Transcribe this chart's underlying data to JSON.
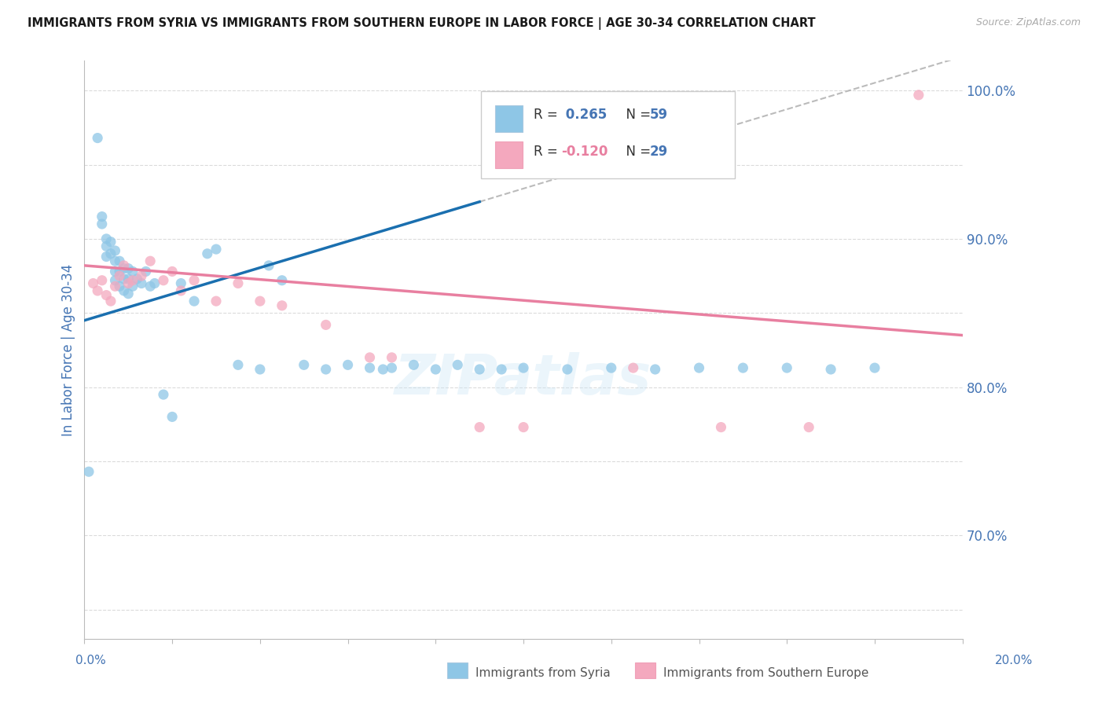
{
  "title": "IMMIGRANTS FROM SYRIA VS IMMIGRANTS FROM SOUTHERN EUROPE IN LABOR FORCE | AGE 30-34 CORRELATION CHART",
  "source": "Source: ZipAtlas.com",
  "ylabel": "In Labor Force | Age 30-34",
  "xlim": [
    0.0,
    0.2
  ],
  "ylim": [
    0.63,
    1.02
  ],
  "color_syria": "#8ec6e6",
  "color_southern": "#f4a8be",
  "color_axis_label": "#4575b4",
  "color_source": "#aaaaaa",
  "color_grid": "#cccccc",
  "color_line_syria": "#1a6faf",
  "color_line_southern": "#e87fa0",
  "color_line_dashed": "#aaaaaa",
  "syria_x": [
    0.001,
    0.003,
    0.004,
    0.004,
    0.005,
    0.005,
    0.005,
    0.006,
    0.006,
    0.007,
    0.007,
    0.007,
    0.007,
    0.008,
    0.008,
    0.008,
    0.009,
    0.009,
    0.009,
    0.01,
    0.01,
    0.01,
    0.011,
    0.011,
    0.012,
    0.013,
    0.014,
    0.015,
    0.016,
    0.018,
    0.02,
    0.022,
    0.025,
    0.028,
    0.03,
    0.035,
    0.04,
    0.042,
    0.045,
    0.05,
    0.055,
    0.06,
    0.065,
    0.068,
    0.07,
    0.075,
    0.08,
    0.085,
    0.09,
    0.095,
    0.1,
    0.11,
    0.12,
    0.13,
    0.14,
    0.15,
    0.16,
    0.17,
    0.18
  ],
  "syria_y": [
    0.743,
    0.968,
    0.915,
    0.91,
    0.9,
    0.895,
    0.888,
    0.898,
    0.89,
    0.892,
    0.885,
    0.878,
    0.872,
    0.885,
    0.878,
    0.868,
    0.88,
    0.873,
    0.865,
    0.88,
    0.873,
    0.863,
    0.878,
    0.868,
    0.873,
    0.87,
    0.878,
    0.868,
    0.87,
    0.795,
    0.78,
    0.87,
    0.858,
    0.89,
    0.893,
    0.815,
    0.812,
    0.882,
    0.872,
    0.815,
    0.812,
    0.815,
    0.813,
    0.812,
    0.813,
    0.815,
    0.812,
    0.815,
    0.812,
    0.812,
    0.813,
    0.812,
    0.813,
    0.812,
    0.813,
    0.813,
    0.813,
    0.812,
    0.813
  ],
  "southern_x": [
    0.002,
    0.003,
    0.004,
    0.005,
    0.006,
    0.007,
    0.008,
    0.009,
    0.01,
    0.011,
    0.013,
    0.015,
    0.018,
    0.02,
    0.022,
    0.025,
    0.03,
    0.035,
    0.04,
    0.045,
    0.055,
    0.065,
    0.07,
    0.09,
    0.1,
    0.125,
    0.145,
    0.165,
    0.19
  ],
  "southern_y": [
    0.87,
    0.865,
    0.872,
    0.862,
    0.858,
    0.868,
    0.875,
    0.882,
    0.87,
    0.872,
    0.875,
    0.885,
    0.872,
    0.878,
    0.865,
    0.872,
    0.858,
    0.87,
    0.858,
    0.855,
    0.842,
    0.82,
    0.82,
    0.773,
    0.773,
    0.813,
    0.773,
    0.773,
    0.997
  ],
  "trend_syria_x0": 0.0,
  "trend_syria_y0": 0.845,
  "trend_syria_x1": 0.09,
  "trend_syria_y1": 0.925,
  "trend_dashed_x0": 0.09,
  "trend_dashed_y0": 0.925,
  "trend_dashed_x1": 0.2,
  "trend_dashed_y1": 1.023,
  "trend_se_x0": 0.0,
  "trend_se_y0": 0.882,
  "trend_se_x1": 0.2,
  "trend_se_y1": 0.835
}
